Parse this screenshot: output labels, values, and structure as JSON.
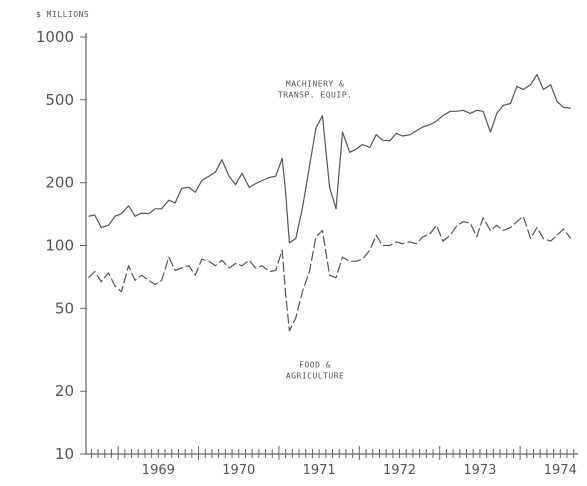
{
  "chart_data": {
    "type": "line",
    "unit_label": "$ MILLIONS",
    "y_scale": "log",
    "ylim": [
      10,
      1000
    ],
    "y_ticks": [
      10,
      20,
      50,
      100,
      200,
      500,
      1000
    ],
    "y_tick_labels": [
      "10",
      "20",
      "50",
      "100",
      "200",
      "500",
      "1000"
    ],
    "xlim": [
      1968.6,
      1974.72
    ],
    "x_ticks": [
      1969,
      1970,
      1971,
      1972,
      1973,
      1974
    ],
    "x_tick_labels": [
      "1969",
      "1970",
      "1971",
      "1972",
      "1973",
      "1974"
    ],
    "series": [
      {
        "name_lines": [
          "MACHINERY &",
          "TRANSP. EQUIP."
        ],
        "style": "solid",
        "color": "#555555",
        "label_x": 1971.45,
        "label_y": 580,
        "x": [
          1968.63,
          1968.71,
          1968.79,
          1968.88,
          1968.96,
          1969.04,
          1969.13,
          1969.21,
          1969.29,
          1969.38,
          1969.46,
          1969.54,
          1969.63,
          1969.71,
          1969.79,
          1969.88,
          1969.96,
          1970.04,
          1970.13,
          1970.21,
          1970.29,
          1970.38,
          1970.46,
          1970.54,
          1970.63,
          1970.71,
          1970.79,
          1970.88,
          1970.96,
          1971.04,
          1971.08,
          1971.13,
          1971.21,
          1971.29,
          1971.38,
          1971.46,
          1971.54,
          1971.63,
          1971.71,
          1971.79,
          1971.88,
          1971.96,
          1972.04,
          1972.13,
          1972.21,
          1972.29,
          1972.38,
          1972.46,
          1972.54,
          1972.63,
          1972.71,
          1972.79,
          1972.88,
          1972.96,
          1973.04,
          1973.13,
          1973.21,
          1973.29,
          1973.38,
          1973.46,
          1973.54,
          1973.63,
          1973.71,
          1973.79,
          1973.88,
          1973.96,
          1974.04,
          1974.13,
          1974.21,
          1974.29,
          1974.38,
          1974.46,
          1974.54,
          1974.63
        ],
        "values": [
          138,
          140,
          122,
          125,
          138,
          142,
          155,
          138,
          143,
          142,
          150,
          150,
          165,
          160,
          188,
          190,
          180,
          205,
          215,
          225,
          258,
          215,
          196,
          222,
          190,
          198,
          205,
          212,
          215,
          262,
          185,
          103,
          108,
          150,
          240,
          365,
          420,
          190,
          150,
          350,
          280,
          290,
          305,
          295,
          340,
          320,
          318,
          345,
          335,
          340,
          355,
          370,
          380,
          395,
          420,
          440,
          440,
          445,
          430,
          445,
          440,
          350,
          430,
          470,
          480,
          580,
          560,
          590,
          660,
          560,
          590,
          490,
          460,
          455
        ]
      },
      {
        "name_lines": [
          "FOOD &",
          "AGRICULTURE"
        ],
        "style": "dashed",
        "color": "#555555",
        "label_x": 1971.45,
        "label_y": 26,
        "x": [
          1968.63,
          1968.71,
          1968.79,
          1968.88,
          1968.96,
          1969.04,
          1969.13,
          1969.21,
          1969.29,
          1969.38,
          1969.46,
          1969.54,
          1969.63,
          1969.71,
          1969.79,
          1969.88,
          1969.96,
          1970.04,
          1970.13,
          1970.21,
          1970.29,
          1970.38,
          1970.46,
          1970.54,
          1970.63,
          1970.71,
          1970.79,
          1970.88,
          1970.96,
          1971.04,
          1971.08,
          1971.13,
          1971.21,
          1971.29,
          1971.38,
          1971.46,
          1971.54,
          1971.63,
          1971.71,
          1971.79,
          1971.88,
          1971.96,
          1972.04,
          1972.13,
          1972.21,
          1972.29,
          1972.38,
          1972.46,
          1972.54,
          1972.63,
          1972.71,
          1972.79,
          1972.88,
          1972.96,
          1973.04,
          1973.13,
          1973.21,
          1973.29,
          1973.38,
          1973.46,
          1973.54,
          1973.63,
          1973.71,
          1973.79,
          1973.88,
          1973.96,
          1974.04,
          1974.13,
          1974.21,
          1974.29,
          1974.38,
          1974.46,
          1974.54,
          1974.63
        ],
        "values": [
          70,
          75,
          67,
          74,
          64,
          60,
          80,
          68,
          72,
          68,
          65,
          68,
          88,
          76,
          78,
          80,
          72,
          86,
          84,
          80,
          85,
          78,
          82,
          80,
          85,
          78,
          80,
          75,
          76,
          95,
          60,
          39,
          45,
          60,
          75,
          110,
          118,
          72,
          70,
          88,
          84,
          84,
          86,
          95,
          112,
          100,
          100,
          104,
          102,
          104,
          102,
          110,
          114,
          125,
          105,
          112,
          124,
          130,
          128,
          110,
          136,
          118,
          125,
          118,
          122,
          130,
          138,
          108,
          122,
          108,
          105,
          112,
          120,
          108
        ]
      }
    ]
  }
}
